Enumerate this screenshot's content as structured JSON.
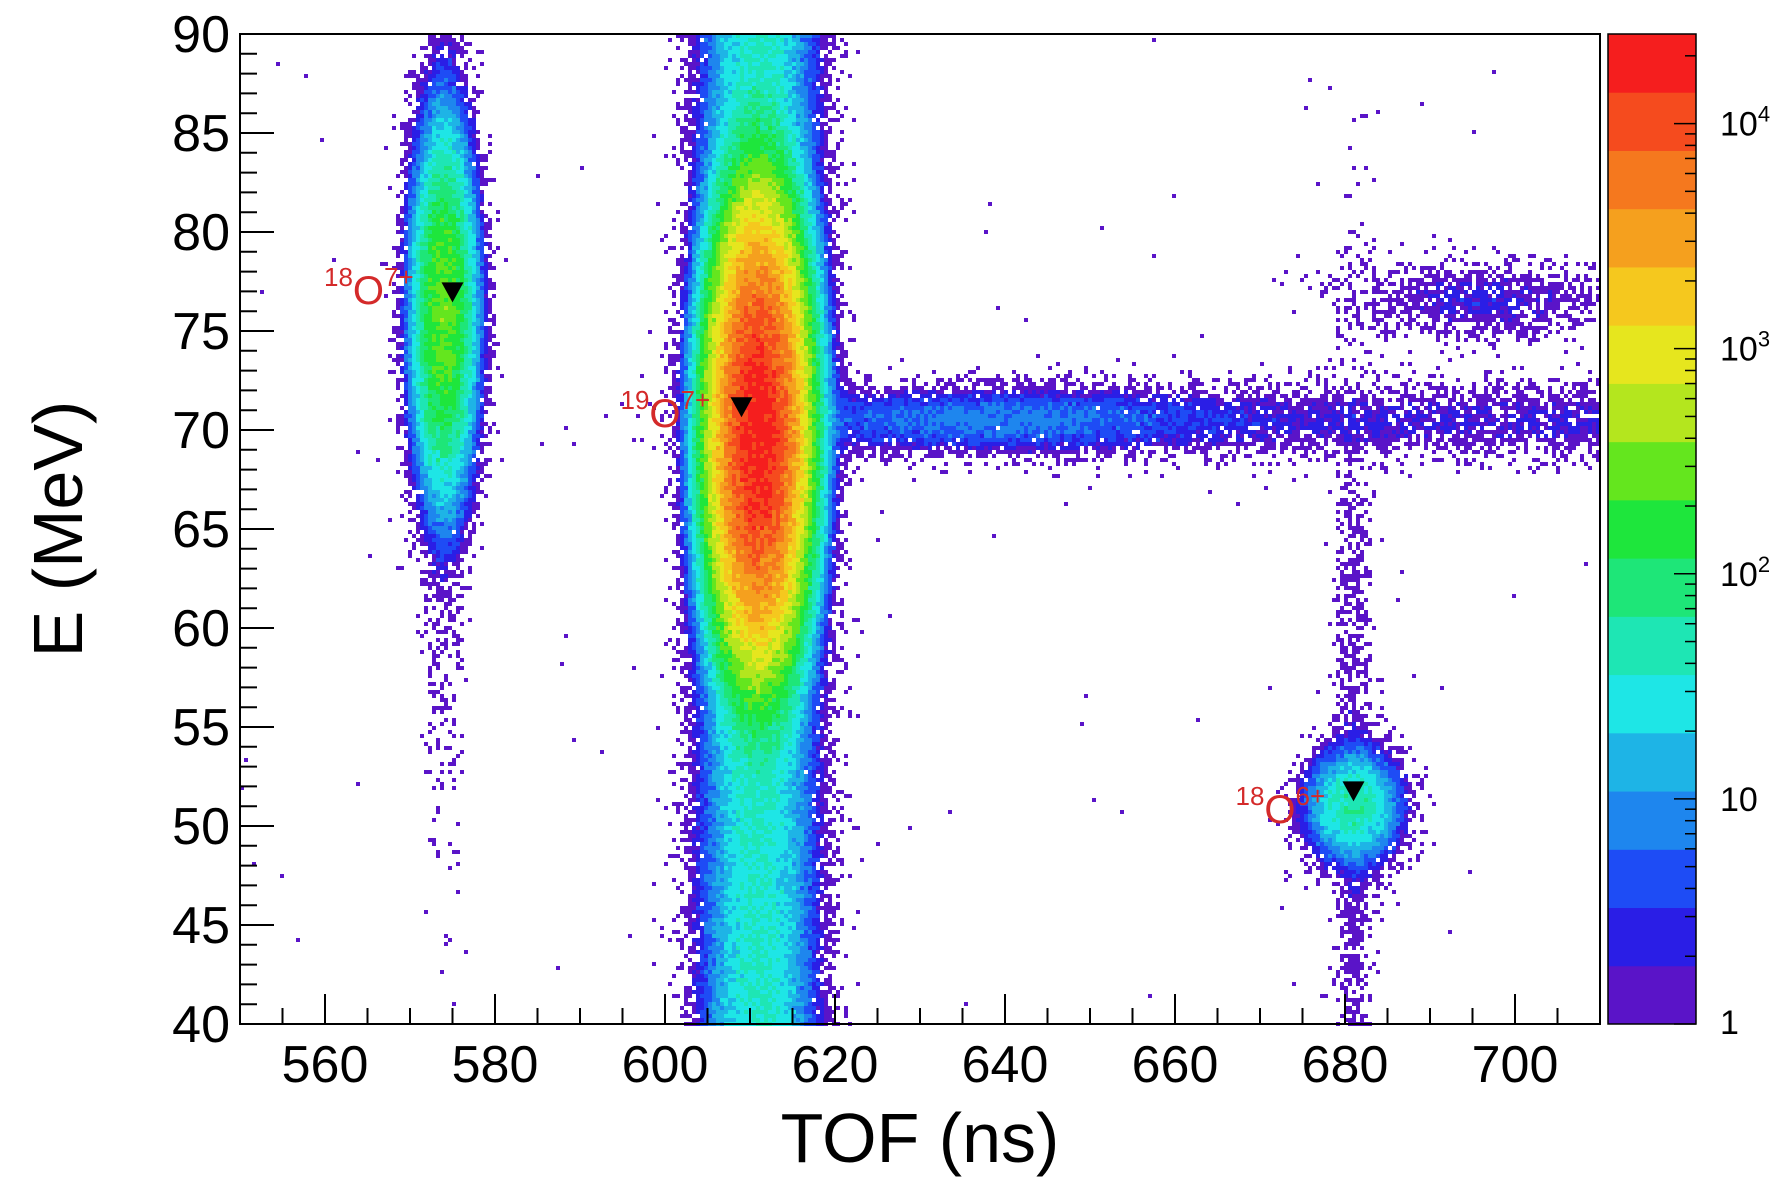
{
  "chart_data": {
    "type": "heatmap",
    "xlabel": "TOF (ns)",
    "ylabel": "E (MeV)",
    "xlim": [
      550,
      710
    ],
    "ylim": [
      40,
      90
    ],
    "x_ticks": [
      "560",
      "580",
      "600",
      "620",
      "640",
      "660",
      "680",
      "700"
    ],
    "y_ticks": [
      "40",
      "45",
      "50",
      "55",
      "60",
      "65",
      "70",
      "75",
      "80",
      "85",
      "90"
    ],
    "colorbar": {
      "scale": "log",
      "range": [
        1,
        25000
      ],
      "labels": [
        {
          "value": 1,
          "text": "1"
        },
        {
          "value": 10,
          "text": "10"
        },
        {
          "value": 100,
          "base": "10",
          "exp": "2"
        },
        {
          "value": 1000,
          "base": "10",
          "exp": "3"
        },
        {
          "value": 10000,
          "base": "10",
          "exp": "4"
        }
      ],
      "palette": [
        "#5a14c8",
        "#2a1ee6",
        "#1e4cf5",
        "#1e86ee",
        "#1eb4e6",
        "#1ee6e6",
        "#1ee6b4",
        "#1ee678",
        "#1ee63c",
        "#64e61e",
        "#b4e61e",
        "#e6e61e",
        "#f5c81e",
        "#f5a01e",
        "#f5781e",
        "#f54b1e",
        "#f51e1e"
      ]
    },
    "clusters": [
      {
        "x": 574,
        "y": 76,
        "sx": 1.6,
        "sy": 4.0,
        "peak": 300,
        "label_mass": "18",
        "label_ion": "O",
        "label_charge": "7+"
      },
      {
        "x": 611,
        "y": 70,
        "sx": 2.2,
        "sy": 4.5,
        "peak": 20000,
        "label_mass": "19",
        "label_ion": "O",
        "label_charge": "7+"
      },
      {
        "x": 681,
        "y": 51,
        "sx": 2.5,
        "sy": 1.3,
        "peak": 60,
        "label_mass": "18",
        "label_ion": "O",
        "label_charge": "6+"
      }
    ],
    "markers": [
      {
        "x": 575,
        "y": 77
      },
      {
        "x": 609,
        "y": 71.2
      },
      {
        "x": 681,
        "y": 51.8
      }
    ]
  }
}
